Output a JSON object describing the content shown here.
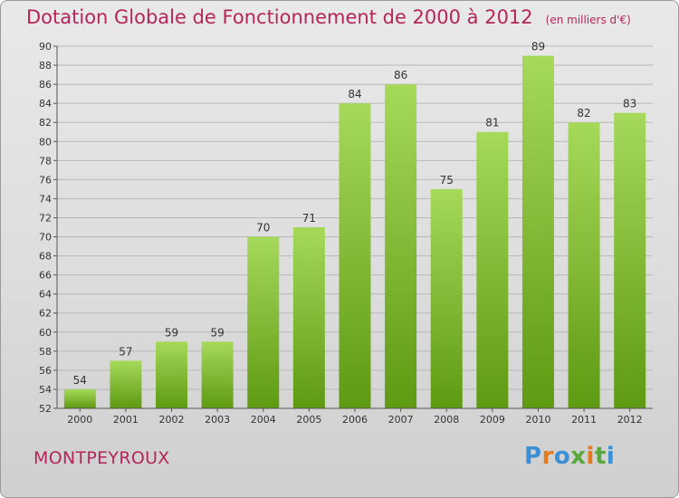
{
  "header": {
    "title": "Dotation Globale de Fonctionnement de 2000 à 2012",
    "subtitle": "(en milliers d'€)"
  },
  "footer": {
    "commune": "MONTPEYROUX",
    "brand": "Proxiti",
    "brand_colors": [
      "#3a8fd6",
      "#e07b1e",
      "#3a8fd6",
      "#5aa83c",
      "#e07b1e",
      "#5aa83c",
      "#3a8fd6"
    ]
  },
  "colors": {
    "bar_top": "#a6d95a",
    "bar_bottom": "#5e9a12",
    "title": "#b5255a"
  },
  "chart_data": {
    "type": "bar",
    "categories": [
      "2000",
      "2001",
      "2002",
      "2003",
      "2004",
      "2005",
      "2006",
      "2007",
      "2008",
      "2009",
      "2010",
      "2011",
      "2012"
    ],
    "values": [
      54,
      57,
      59,
      59,
      70,
      71,
      84,
      86,
      75,
      81,
      89,
      82,
      83
    ],
    "yticks": [
      52,
      54,
      56,
      58,
      60,
      62,
      64,
      66,
      68,
      70,
      72,
      74,
      76,
      78,
      80,
      82,
      84,
      86,
      88,
      90
    ],
    "ylim": [
      52,
      90
    ],
    "grid": true,
    "title": "Dotation Globale de Fonctionnement de 2000 à 2012",
    "unit": "(en milliers d'€)"
  }
}
